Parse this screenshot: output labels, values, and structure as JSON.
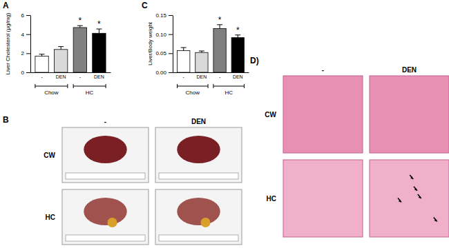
{
  "chart_data": [
    {
      "type": "bar",
      "title": "A",
      "y_label": "Liver Cholesterol (μg/mg)",
      "categories": [
        "-",
        "DEN",
        "-",
        "DEN"
      ],
      "groups": [
        "Chow",
        "Chow",
        "HC",
        "HC"
      ],
      "values": [
        1.7,
        2.4,
        4.7,
        4.1
      ],
      "errors": [
        0.2,
        0.3,
        0.2,
        0.45
      ],
      "annotations": [
        null,
        null,
        "*",
        "*"
      ],
      "colors": [
        "#ffffff",
        "#d9d9d9",
        "#808080",
        "#000000"
      ],
      "ylim": [
        0,
        6
      ],
      "yticks": [
        0,
        2,
        4,
        6
      ]
    },
    {
      "type": "bar",
      "title": "C",
      "y_label": "Liver/Body weight",
      "categories": [
        "-",
        "DEN",
        "-",
        "DEN"
      ],
      "groups": [
        "Chow",
        "Chow",
        "HC",
        "HC"
      ],
      "values": [
        0.057,
        0.052,
        0.115,
        0.091
      ],
      "errors": [
        0.008,
        0.004,
        0.01,
        0.007
      ],
      "annotations": [
        null,
        null,
        "*",
        "*"
      ],
      "colors": [
        "#ffffff",
        "#d9d9d9",
        "#808080",
        "#000000"
      ],
      "ylim": [
        0,
        0.15
      ],
      "yticks": [
        {
          "value": 0,
          "label": "0.00"
        },
        {
          "value": 0.05,
          "label": "0.05"
        },
        {
          "value": 0.1,
          "label": "0.10"
        },
        {
          "value": 0.15,
          "label": "0.15"
        }
      ]
    }
  ],
  "image_panels": [
    {
      "label": "B",
      "columns": [
        "-",
        "DEN"
      ],
      "rows": [
        "CW",
        "HC"
      ]
    },
    {
      "label": "D)",
      "columns": [
        "-",
        "DEN"
      ],
      "rows": [
        "CW",
        "HC"
      ]
    }
  ]
}
